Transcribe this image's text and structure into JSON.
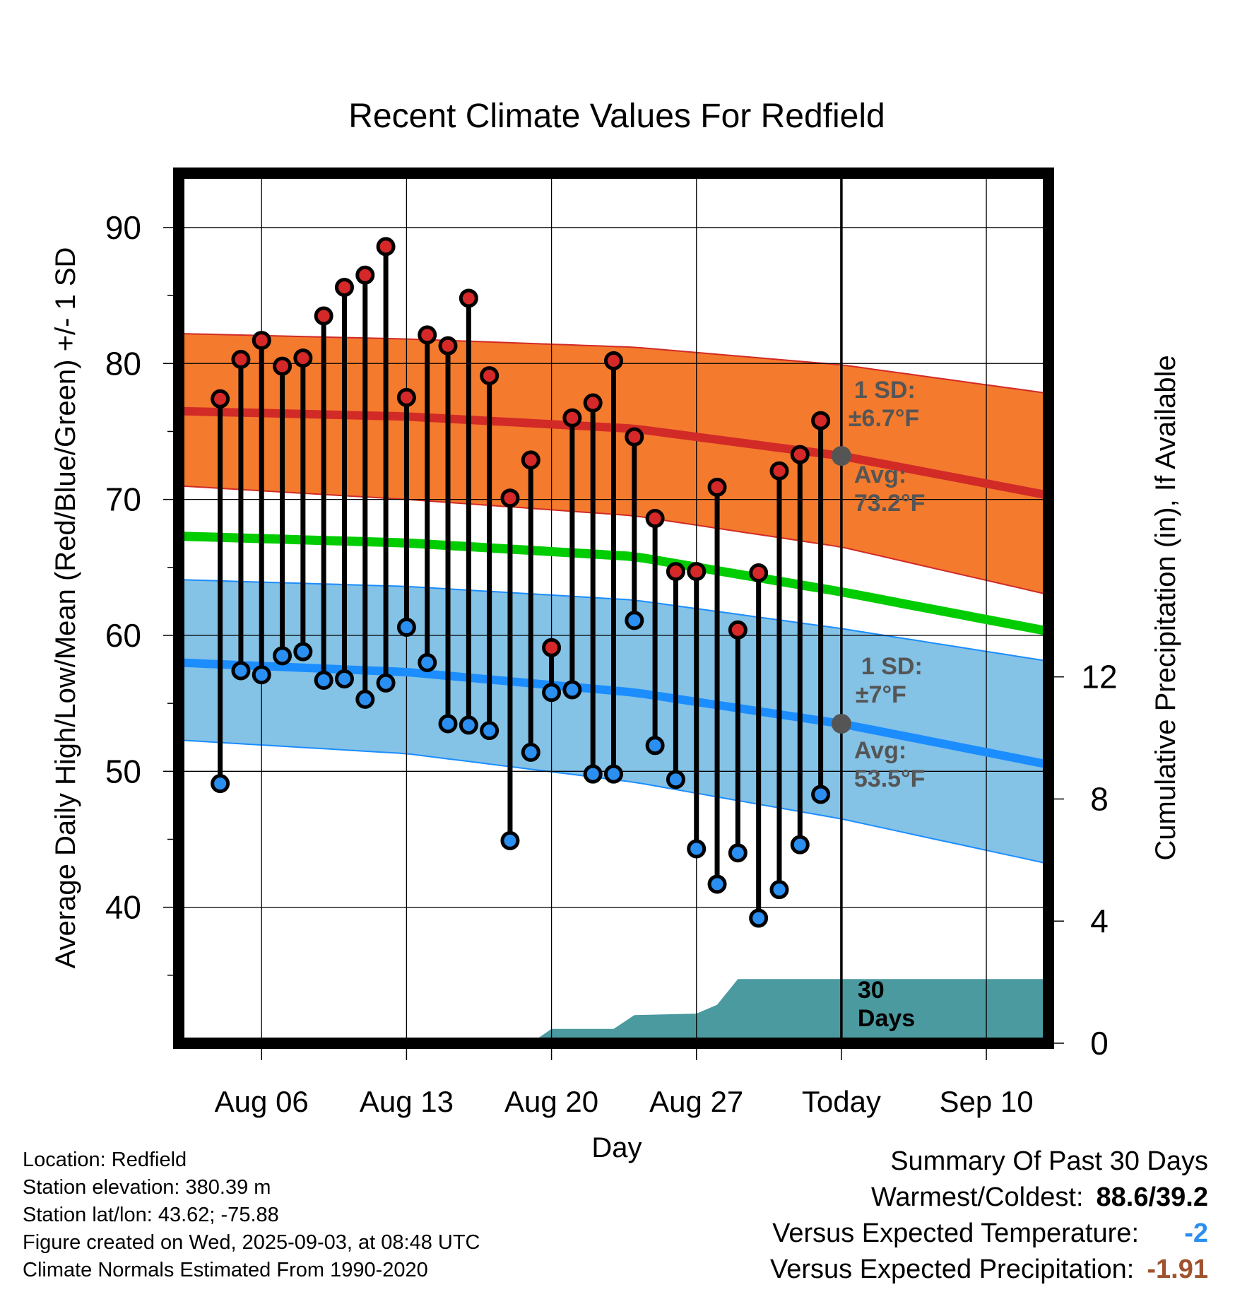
{
  "chart_data": {
    "type": "line",
    "title": "Recent Climate Values For Redfield",
    "xlabel": "Day",
    "ylabel_left": "Average Daily High/Low/Mean (Red/Blue/Green) +/- 1 SD",
    "ylabel_right": "Cumulative Precipitation (in), If Available",
    "x_range": [
      "2025-08-02",
      "2025-09-13"
    ],
    "ylim_left": [
      30,
      94
    ],
    "ylim_right": [
      0,
      28.5
    ],
    "grid": true,
    "x_ticks": [
      {
        "date": "2025-08-06",
        "label": "Aug 06"
      },
      {
        "date": "2025-08-13",
        "label": "Aug 13"
      },
      {
        "date": "2025-08-20",
        "label": "Aug 20"
      },
      {
        "date": "2025-08-27",
        "label": "Aug 27"
      },
      {
        "date": "2025-09-03",
        "label": "Today"
      },
      {
        "date": "2025-09-10",
        "label": "Sep 10"
      }
    ],
    "y_ticks_left": [
      40,
      50,
      60,
      70,
      80,
      90
    ],
    "y_ticks_right": [
      0,
      4,
      8,
      12
    ],
    "today": "2025-09-03",
    "normal_high": {
      "x": [
        "2025-08-02",
        "2025-08-13",
        "2025-08-24",
        "2025-09-03",
        "2025-09-13"
      ],
      "avg": [
        76.5,
        76.1,
        75.2,
        73.2,
        70.3
      ],
      "upper": [
        82.2,
        81.8,
        81.2,
        79.9,
        77.8
      ],
      "lower": [
        71.0,
        70.0,
        68.8,
        66.5,
        63.0
      ]
    },
    "normal_mean": {
      "x": [
        "2025-08-02",
        "2025-08-13",
        "2025-08-24",
        "2025-09-03",
        "2025-09-13"
      ],
      "avg": [
        67.3,
        66.8,
        65.8,
        63.2,
        60.3
      ]
    },
    "normal_low": {
      "x": [
        "2025-08-02",
        "2025-08-13",
        "2025-08-24",
        "2025-09-03",
        "2025-09-13"
      ],
      "avg": [
        58.0,
        57.3,
        55.8,
        53.5,
        50.5
      ],
      "upper": [
        64.1,
        63.6,
        62.6,
        60.5,
        58.1
      ],
      "lower": [
        52.3,
        51.3,
        49.2,
        46.5,
        43.2
      ]
    },
    "daily": {
      "dates": [
        "2025-08-04",
        "2025-08-05",
        "2025-08-06",
        "2025-08-07",
        "2025-08-08",
        "2025-08-09",
        "2025-08-10",
        "2025-08-11",
        "2025-08-12",
        "2025-08-13",
        "2025-08-14",
        "2025-08-15",
        "2025-08-16",
        "2025-08-17",
        "2025-08-18",
        "2025-08-19",
        "2025-08-20",
        "2025-08-21",
        "2025-08-22",
        "2025-08-23",
        "2025-08-24",
        "2025-08-25",
        "2025-08-26",
        "2025-08-27",
        "2025-08-28",
        "2025-08-29",
        "2025-08-30",
        "2025-08-31",
        "2025-09-01",
        "2025-09-02"
      ],
      "high": [
        77.4,
        80.3,
        81.7,
        79.8,
        80.4,
        83.5,
        85.6,
        86.5,
        88.6,
        77.5,
        82.1,
        81.3,
        84.8,
        79.1,
        70.1,
        72.9,
        59.1,
        76.0,
        77.1,
        80.2,
        74.6,
        68.6,
        64.7,
        64.7,
        70.9,
        60.4,
        64.6,
        72.1,
        73.3,
        75.8
      ],
      "low": [
        49.1,
        57.4,
        57.1,
        58.5,
        58.8,
        56.7,
        56.8,
        55.3,
        56.5,
        60.6,
        58.0,
        53.5,
        53.4,
        53.0,
        44.9,
        51.4,
        55.8,
        56.0,
        49.8,
        49.8,
        61.1,
        51.9,
        49.4,
        44.3,
        41.7,
        44.0,
        39.2,
        41.3,
        44.6,
        48.3
      ]
    },
    "precipitation": {
      "dates": [
        "2025-08-02",
        "2025-08-19",
        "2025-08-20",
        "2025-08-23",
        "2025-08-24",
        "2025-08-27",
        "2025-08-28",
        "2025-08-29",
        "2025-09-13"
      ],
      "cumulative": [
        0,
        0,
        0.47,
        0.47,
        0.92,
        0.97,
        1.26,
        2.1,
        2.1
      ]
    },
    "annotations": {
      "high_sd": {
        "line1": "1 SD:",
        "line2": "±6.7°F"
      },
      "high_avg": {
        "line1": "Avg:",
        "line2": "73.2°F"
      },
      "low_sd": {
        "line1": "1 SD:",
        "line2": "±7°F"
      },
      "low_avg": {
        "line1": "Avg:",
        "line2": "53.5°F"
      },
      "days": {
        "line1": "30",
        "line2": "Days"
      }
    },
    "colors": {
      "high_band": "#f47a2d",
      "high_line": "#d12a27",
      "mean_line": "#00cc00",
      "low_band": "#84c2e6",
      "low_line": "#1b8dff",
      "precip_area": "#4a9aa0",
      "high_marker": "#d62828",
      "low_marker": "#2a8ff0",
      "annotation_text": "#555555"
    }
  },
  "info": {
    "location": "Location: Redfield",
    "elevation": "Station elevation: 380.39 m",
    "latlon": "Station lat/lon: 43.62; -75.88",
    "created": "Figure created on Wed, 2025-09-03, at 08:48 UTC",
    "normals": "Climate Normals Estimated From 1990-2020"
  },
  "summary": {
    "heading": "Summary Of Past 30 Days",
    "warmest_label": "Warmest/Coldest:",
    "warmest_value": "88.6/39.2",
    "temp_label": "Versus Expected Temperature:",
    "temp_value": "-2",
    "temp_color": "#2a8ff0",
    "precip_label": "Versus Expected Precipitation:",
    "precip_value": "-1.91",
    "precip_color": "#a0522d"
  }
}
